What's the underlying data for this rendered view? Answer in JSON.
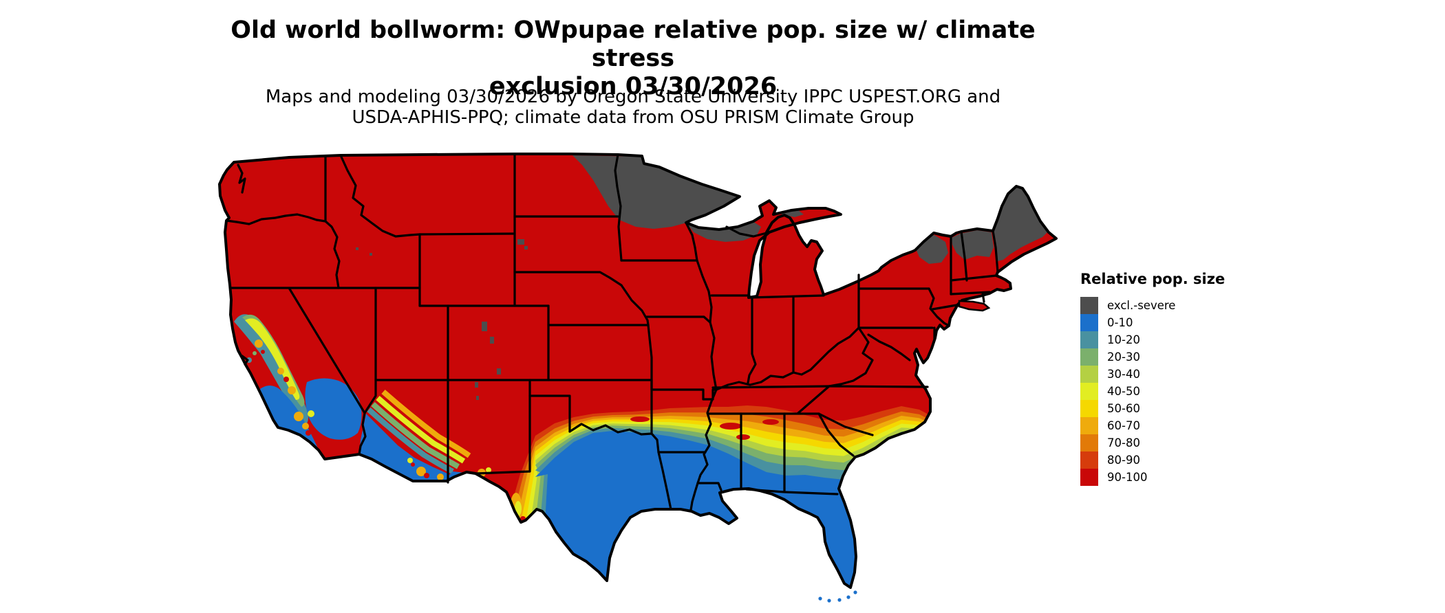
{
  "header": {
    "title_line1": "Old world bollworm: OWpupae relative pop. size w/ climate stress",
    "title_line2": "exclusion 03/30/2026",
    "subtitle_line1": "Maps and modeling 03/30/2026 by Oregon State University IPPC USPEST.ORG and",
    "subtitle_line2": "USDA-APHIS-PPQ; climate data from OSU PRISM Climate Group"
  },
  "legend": {
    "title": "Relative pop. size",
    "entries": [
      {
        "label": "excl.-severe",
        "color": "#4d4d4d"
      },
      {
        "label": "0-10",
        "color": "#1b70cb"
      },
      {
        "label": "10-20",
        "color": "#4991a0"
      },
      {
        "label": "20-30",
        "color": "#7bb06c"
      },
      {
        "label": "30-40",
        "color": "#b4d043"
      },
      {
        "label": "40-50",
        "color": "#e2ed22"
      },
      {
        "label": "50-60",
        "color": "#f5d800"
      },
      {
        "label": "60-70",
        "color": "#efab0c"
      },
      {
        "label": "70-80",
        "color": "#e27a08"
      },
      {
        "label": "80-90",
        "color": "#d63c0c"
      },
      {
        "label": "90-100",
        "color": "#c90708"
      }
    ]
  },
  "map": {
    "border_color": "#000000",
    "water_color": "#ffffff",
    "background_fill": "#c90708",
    "excluded_fill": "#4d4d4d"
  }
}
